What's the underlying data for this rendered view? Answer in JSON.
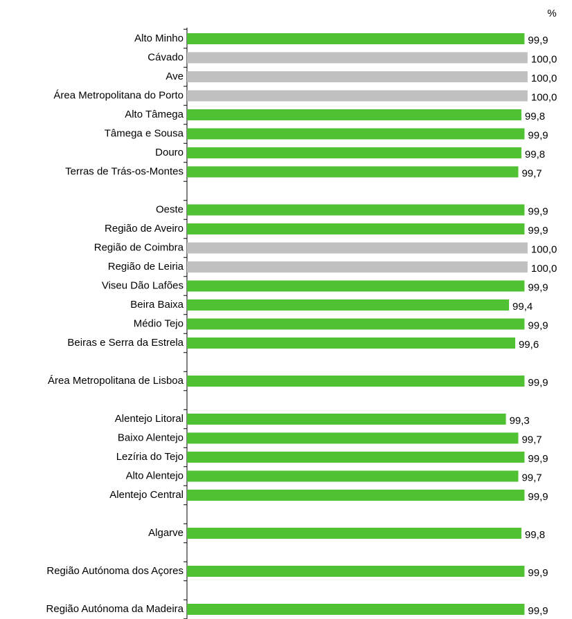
{
  "chart_data": {
    "type": "hbar",
    "unit_label": "%",
    "categories": [
      "Alto Minho",
      "Cávado",
      "Ave",
      "Área Metropolitana do Porto",
      "Alto Tâmega",
      "Tâmega e Sousa",
      "Douro",
      "Terras de Trás-os-Montes",
      null,
      "Oeste",
      "Região de Aveiro",
      "Região de Coimbra",
      "Região de Leiria",
      "Viseu Dão Lafões",
      "Beira Baixa",
      "Médio Tejo",
      "Beiras e Serra da Estrela",
      null,
      "Área Metropolitana de Lisboa",
      null,
      "Alentejo Litoral",
      "Baixo Alentejo",
      "Lezíria do Tejo",
      "Alto Alentejo",
      "Alentejo Central",
      null,
      "Algarve",
      null,
      "Região Autónoma dos Açores",
      null,
      "Região Autónoma da Madeira"
    ],
    "values": [
      99.9,
      100.0,
      100.0,
      100.0,
      99.8,
      99.9,
      99.8,
      99.7,
      null,
      99.9,
      99.9,
      100.0,
      100.0,
      99.9,
      99.4,
      99.9,
      99.6,
      null,
      99.9,
      null,
      99.3,
      99.7,
      99.9,
      99.7,
      99.9,
      null,
      99.8,
      null,
      99.9,
      null,
      99.9
    ],
    "value_labels": [
      "99,9",
      "100,0",
      "100,0",
      "100,0",
      "99,8",
      "99,9",
      "99,8",
      "99,7",
      null,
      "99,9",
      "99,9",
      "100,0",
      "100,0",
      "99,9",
      "99,4",
      "99,9",
      "99,6",
      null,
      "99,9",
      null,
      "99,3",
      "99,7",
      "99,9",
      "99,7",
      "99,9",
      null,
      "99,8",
      null,
      "99,9",
      null,
      "99,9"
    ],
    "colors": [
      "#4fc132",
      "#c0c0c0",
      "#c0c0c0",
      "#c0c0c0",
      "#4fc132",
      "#4fc132",
      "#4fc132",
      "#4fc132",
      null,
      "#4fc132",
      "#4fc132",
      "#c0c0c0",
      "#c0c0c0",
      "#4fc132",
      "#4fc132",
      "#4fc132",
      "#4fc132",
      null,
      "#4fc132",
      null,
      "#4fc132",
      "#4fc132",
      "#4fc132",
      "#4fc132",
      "#4fc132",
      null,
      "#4fc132",
      null,
      "#4fc132",
      null,
      "#4fc132"
    ],
    "xlim": [
      89,
      101.3
    ]
  }
}
